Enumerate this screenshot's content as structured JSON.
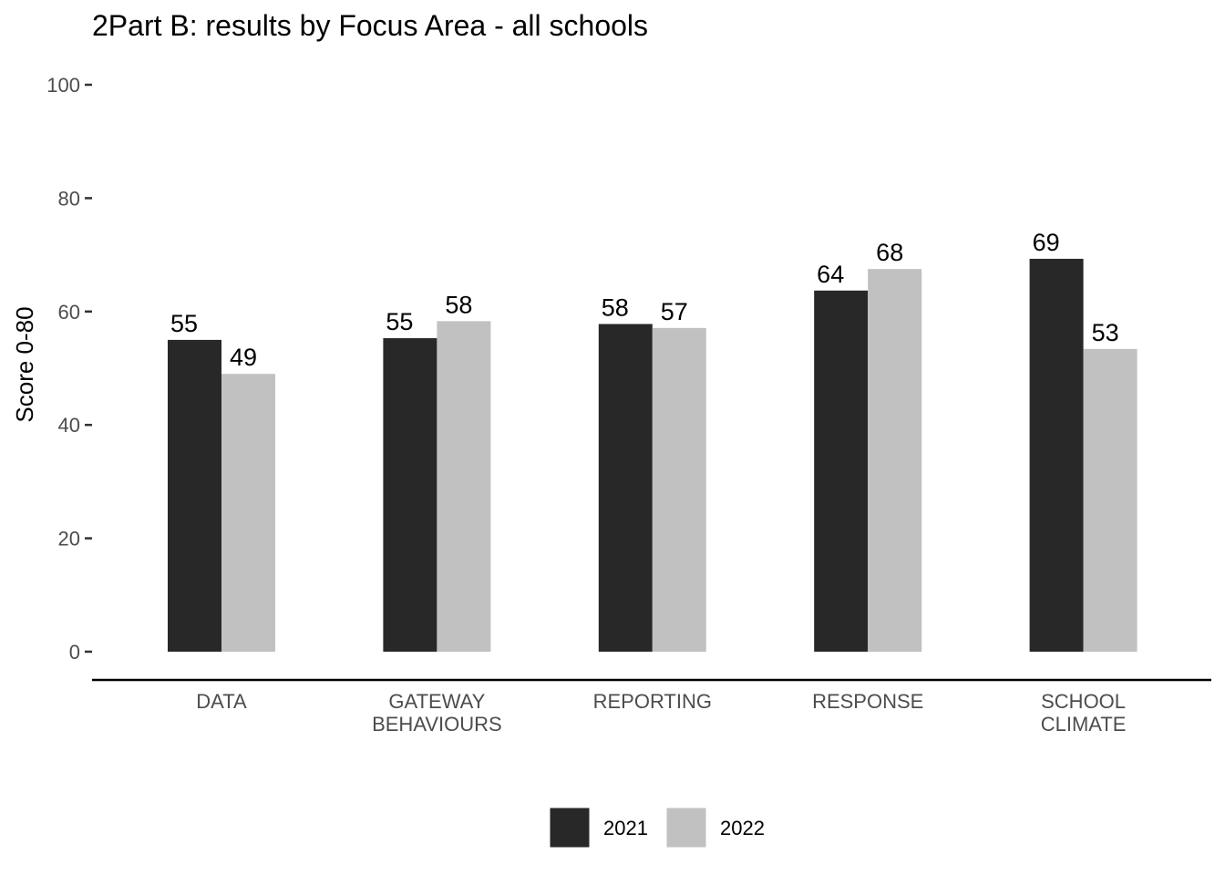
{
  "chart_data": {
    "type": "bar",
    "title": "2Part B: results by Focus Area - all schools",
    "ylabel": "Score 0-80",
    "xlabel": "",
    "ylim": [
      0,
      100
    ],
    "yticks": [
      0,
      20,
      40,
      60,
      80,
      100
    ],
    "categories": [
      [
        "DATA"
      ],
      [
        "GATEWAY",
        "BEHAVIOURS"
      ],
      [
        "REPORTING"
      ],
      [
        "RESPONSE"
      ],
      [
        "SCHOOL",
        "CLIMATE"
      ]
    ],
    "series": [
      {
        "name": "2021",
        "color": "#282828",
        "values": [
          55,
          55.3,
          57.8,
          63.7,
          69.3
        ],
        "labels": [
          "55",
          "55",
          "58",
          "64",
          "69"
        ]
      },
      {
        "name": "2022",
        "color": "#c1c1c1",
        "values": [
          49,
          58.3,
          57.1,
          67.5,
          53.4
        ],
        "labels": [
          "49",
          "58",
          "57",
          "68",
          "53"
        ]
      }
    ],
    "legend": "bottom",
    "grid": false
  }
}
